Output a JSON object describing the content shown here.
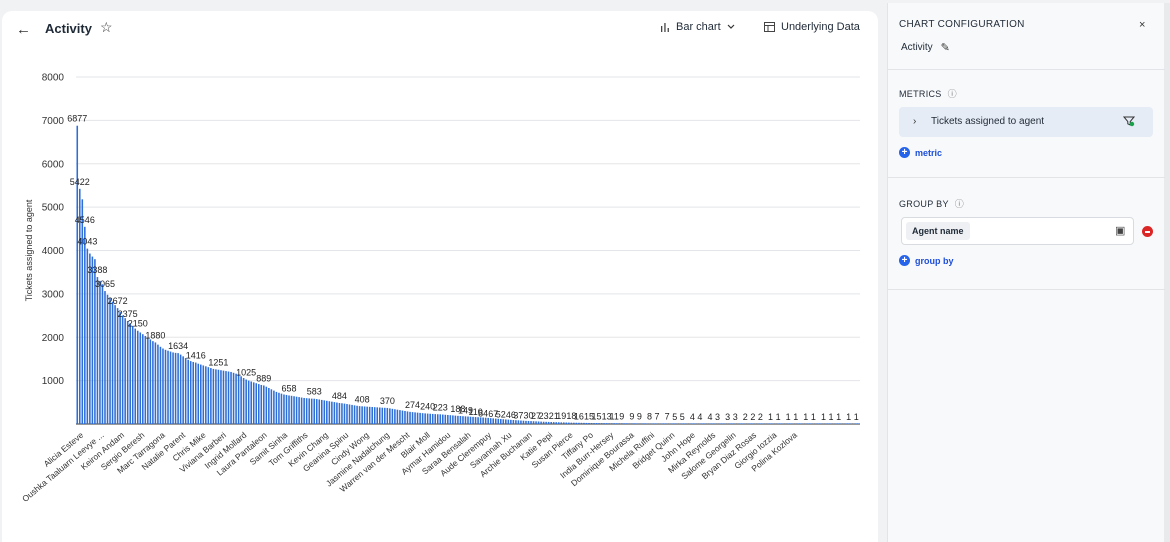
{
  "header": {
    "title": "Activity",
    "chart_type": "Bar chart",
    "underlying_data": "Underlying Data"
  },
  "panel": {
    "title": "CHART CONFIGURATION",
    "name": "Activity",
    "metrics_label": "METRICS",
    "metric_name": "Tickets assigned to agent",
    "add_metric": "metric",
    "group_by_label": "GROUP BY",
    "group_field": "Agent name",
    "add_group_by": "group by"
  },
  "colors": {
    "bar": "#2e6ed6",
    "accent": "#2563eb",
    "danger": "#dc2626"
  },
  "chart_data": {
    "type": "bar",
    "title": "",
    "xlabel": "",
    "ylabel": "Tickets assigned to agent",
    "ylim": [
      0,
      8000
    ],
    "yticks": [
      1000,
      2000,
      3000,
      4000,
      5000,
      6000,
      7000,
      8000
    ],
    "category_labels": [
      "Alicia Esteve",
      "Oushka Taaluarn Leevye ...",
      "Keiron Andam",
      "Sergio Beresh",
      "Marc Tarragona",
      "Natalie Parent",
      "Chris Mike",
      "Viviana Barberi",
      "Ingrid Mollard",
      "Laura Pantaleon",
      "Samit Sinha",
      "Tom Griffiths",
      "Kevin Chang",
      "Geanina Spinu",
      "Cindy Wong",
      "Jasmine Nadalchung",
      "Warren van der Mescht",
      "Blair Moll",
      "Aymar Hamidou",
      "Saraa Bensalah",
      "Aude Clerempuy",
      "Savannah Xu",
      "Archie Buchanan",
      "Katie Pepi",
      "Susan Pierce",
      "Tiffany Po",
      "India Burr-Hersey",
      "Dominique Bourassa",
      "Michela Ruffini",
      "Bridget Quinn",
      "John Hope",
      "Mirka Reynolds",
      "Salome Georgelin",
      "Bryan Diaz Rosas",
      "Giorgio Iozzia",
      "Polina Kozlova"
    ],
    "labeled_values": [
      6877,
      5422,
      4546,
      4043,
      3388,
      3065,
      2672,
      2375,
      2150,
      1880,
      1634,
      1416,
      1251,
      1025,
      889,
      658,
      583,
      484,
      408,
      370,
      274,
      240,
      223,
      188,
      149,
      110,
      84,
      67,
      52,
      46,
      37,
      30,
      27,
      23,
      21,
      19,
      18,
      16,
      15,
      15,
      13,
      11,
      9,
      9,
      9,
      8,
      7,
      7,
      5,
      5,
      4,
      4,
      4,
      3,
      3,
      3,
      2,
      2,
      2,
      1,
      1,
      1,
      1,
      1,
      1,
      1,
      1,
      1,
      1,
      1
    ],
    "values": [
      6877,
      5422,
      5180,
      4546,
      4043,
      3930,
      3860,
      3800,
      3388,
      3300,
      3220,
      3065,
      2980,
      2900,
      2820,
      2740,
      2672,
      2580,
      2500,
      2440,
      2375,
      2320,
      2260,
      2200,
      2150,
      2110,
      2070,
      2030,
      1990,
      1950,
      1910,
      1880,
      1830,
      1780,
      1740,
      1710,
      1690,
      1670,
      1650,
      1640,
      1634,
      1600,
      1560,
      1520,
      1480,
      1450,
      1430,
      1416,
      1390,
      1370,
      1350,
      1330,
      1310,
      1290,
      1270,
      1260,
      1251,
      1240,
      1230,
      1220,
      1210,
      1200,
      1180,
      1160,
      1140,
      1100,
      1060,
      1025,
      1000,
      980,
      960,
      940,
      920,
      900,
      889,
      860,
      830,
      800,
      770,
      740,
      720,
      700,
      680,
      670,
      658,
      650,
      640,
      630,
      620,
      610,
      600,
      595,
      590,
      585,
      583,
      575,
      565,
      555,
      545,
      535,
      525,
      515,
      505,
      495,
      484,
      478,
      470,
      460,
      450,
      440,
      430,
      420,
      412,
      408,
      404,
      400,
      396,
      392,
      388,
      384,
      380,
      376,
      373,
      370,
      360,
      350,
      340,
      330,
      320,
      310,
      300,
      290,
      280,
      274,
      268,
      262,
      256,
      250,
      245,
      240,
      236,
      232,
      228,
      225,
      223,
      218,
      213,
      208,
      203,
      198,
      193,
      188,
      184,
      180,
      176,
      172,
      168,
      164,
      160,
      156,
      152,
      149,
      145,
      140,
      135,
      130,
      125,
      120,
      115,
      110,
      105,
      100,
      96,
      92,
      88,
      84,
      80,
      76,
      72,
      70,
      67,
      64,
      61,
      58,
      55,
      52,
      50,
      48,
      46,
      44,
      42,
      40,
      38,
      37,
      35,
      33,
      31,
      30,
      29,
      28,
      27,
      26,
      25,
      24,
      23,
      22,
      22,
      21,
      21,
      20,
      20,
      19,
      19,
      19,
      18,
      18,
      18,
      17,
      17,
      16,
      16,
      16,
      15,
      15,
      15,
      15,
      14,
      14,
      13,
      13,
      13,
      12,
      12,
      11,
      11,
      11,
      10,
      10,
      10,
      9,
      9,
      9,
      9,
      9,
      9,
      8,
      8,
      8,
      7,
      7,
      7,
      7,
      7,
      6,
      6,
      5,
      5,
      5,
      5,
      5,
      4,
      4,
      4,
      4,
      4,
      4,
      4,
      3,
      3,
      3,
      3,
      3,
      3,
      3,
      3,
      2,
      2,
      2,
      2,
      2,
      2,
      2,
      2,
      2,
      2,
      1,
      1,
      1,
      1,
      1,
      1,
      1,
      1,
      1,
      1,
      1,
      1,
      1,
      1,
      1,
      1,
      1,
      1,
      1,
      1,
      1,
      1,
      1,
      1,
      1,
      1
    ],
    "grid": true,
    "legend": "none"
  }
}
